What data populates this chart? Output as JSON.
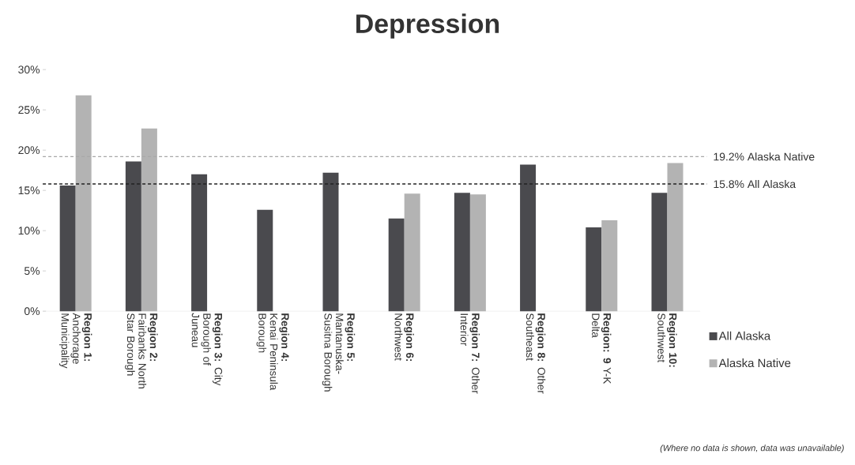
{
  "chart_data": {
    "type": "bar",
    "title": "Depression",
    "categories": [
      "**Region 1:** Anchorage Municipality",
      "**Region 2:** Fairbanks North Star Borough",
      "**Region 3:** City Borough of Juneau",
      "**Region 4:** Kenai Peninsula Borough",
      "**Region 5:** Mantanuska-Susitna Borough",
      "**Region 6:** Northwest",
      "**Region 7:** Other Interior",
      "**Region 8:** Other Southeast",
      "**Region: 9** Y-K Delta",
      "**Region 10:** Southwest"
    ],
    "series": [
      {
        "name": "All Alaska",
        "color": "#4a4a4e",
        "values": [
          15.6,
          18.6,
          17.0,
          12.6,
          17.2,
          11.5,
          14.7,
          18.2,
          10.4,
          14.7
        ]
      },
      {
        "name": "Alaska Native",
        "color": "#b3b3b3",
        "values": [
          26.8,
          22.7,
          null,
          null,
          null,
          14.6,
          14.5,
          null,
          11.3,
          18.4
        ]
      }
    ],
    "ylim": [
      0,
      30
    ],
    "yticks": [
      {
        "value": 0,
        "label": "0%"
      },
      {
        "value": 5,
        "label": "5%"
      },
      {
        "value": 10,
        "label": "10%"
      },
      {
        "value": 15,
        "label": "15%"
      },
      {
        "value": 20,
        "label": "20%"
      },
      {
        "value": 25,
        "label": "25%"
      },
      {
        "value": 30,
        "label": "30%"
      }
    ],
    "ref_lines": [
      {
        "axis": "y",
        "value": 19.2,
        "label": "19.2% Alaska Native",
        "color": "#a8a8a8",
        "line_style": "dashed"
      },
      {
        "axis": "y",
        "value": 15.8,
        "label": "15.8% All Alaska",
        "color": "#222222",
        "line_style": "dashed"
      }
    ],
    "grid": false,
    "legend": "bottom right",
    "annotations": [
      "(Where no data is shown, data was unavailable)"
    ]
  }
}
